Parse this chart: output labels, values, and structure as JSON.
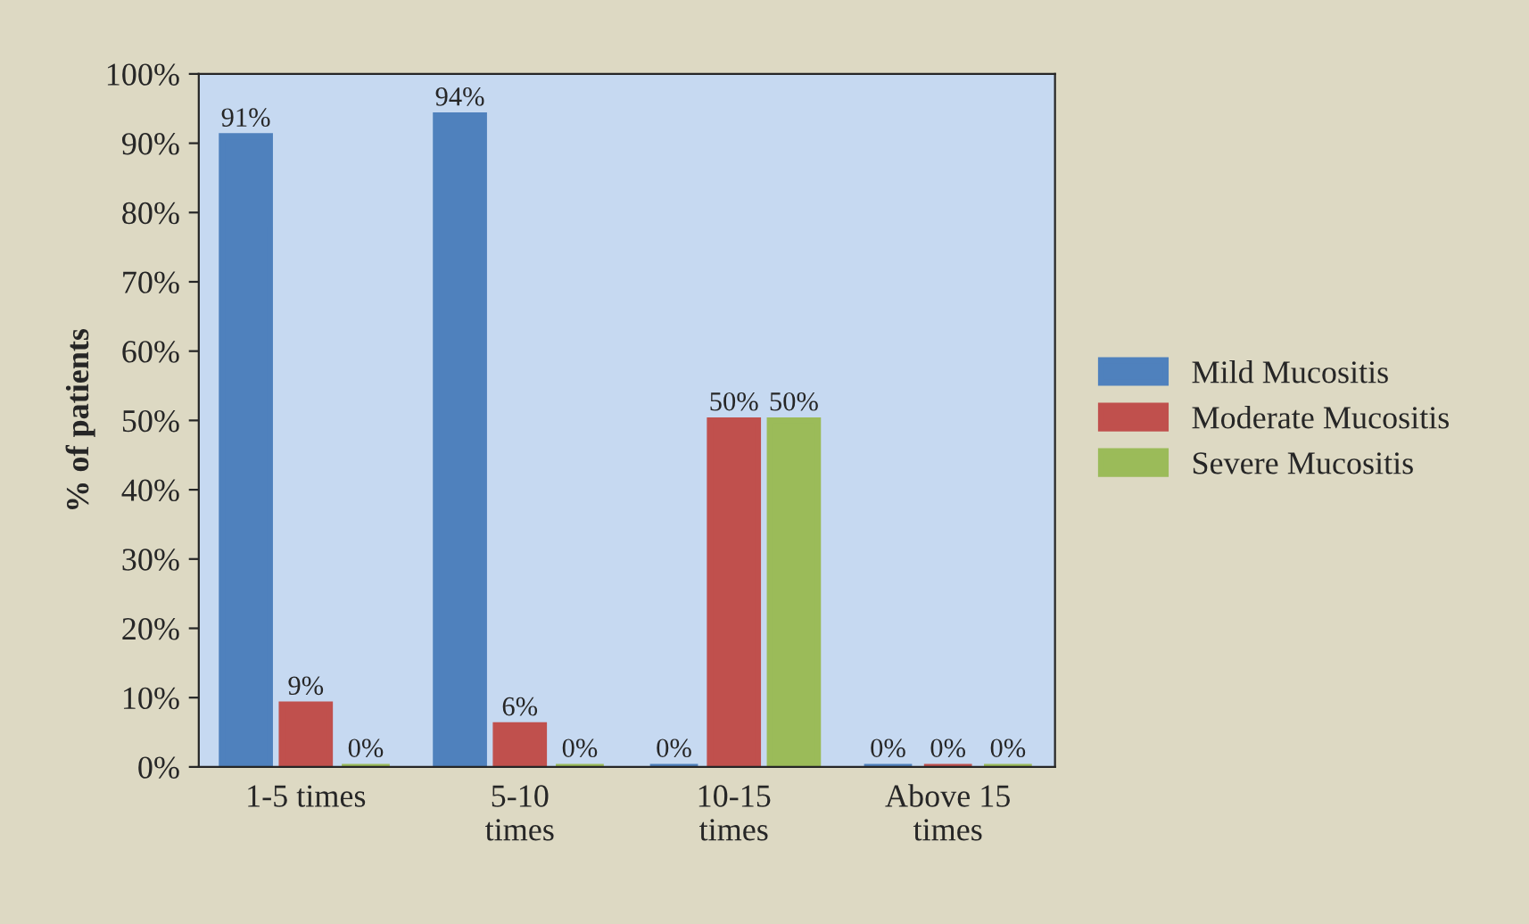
{
  "chart_data": {
    "type": "bar",
    "ylabel": "% of patients",
    "categories": [
      "1-5 times",
      "5-10 times",
      "10-15 times",
      "Above 15 times"
    ],
    "series": [
      {
        "name": "Mild Mucositis",
        "color": "#4f81bd",
        "values": [
          91,
          94,
          0,
          0
        ],
        "value_labels": [
          "91%",
          "94%",
          "0%",
          "0%"
        ]
      },
      {
        "name": "Moderate Mucositis",
        "color": "#c0504d",
        "values": [
          9,
          6,
          50,
          0
        ],
        "value_labels": [
          "9%",
          "6%",
          "50%",
          "0%"
        ]
      },
      {
        "name": "Severe Mucositis",
        "color": "#9bbb59",
        "values": [
          0,
          0,
          50,
          0
        ],
        "value_labels": [
          "0%",
          "0%",
          "50%",
          "0%"
        ]
      }
    ],
    "ylim": [
      0,
      100
    ],
    "yticks": [
      {
        "value": 0,
        "label": "0%"
      },
      {
        "value": 10,
        "label": "10%"
      },
      {
        "value": 20,
        "label": "20%"
      },
      {
        "value": 30,
        "label": "30%"
      },
      {
        "value": 40,
        "label": "40%"
      },
      {
        "value": 50,
        "label": "50%"
      },
      {
        "value": 60,
        "label": "60%"
      },
      {
        "value": 70,
        "label": "70%"
      },
      {
        "value": 80,
        "label": "80%"
      },
      {
        "value": 90,
        "label": "90%"
      },
      {
        "value": 100,
        "label": "100%"
      }
    ],
    "legend": "right"
  }
}
